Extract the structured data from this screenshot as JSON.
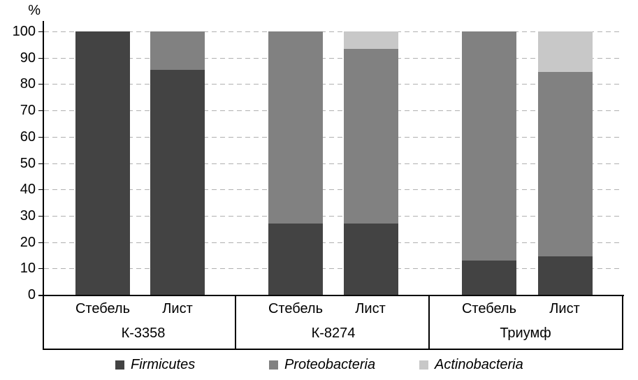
{
  "chart_data": {
    "type": "bar",
    "subtype": "stacked-vertical",
    "title": "",
    "ylabel": "%",
    "xlabel": "",
    "ylim": [
      0,
      100
    ],
    "yticks": [
      0,
      10,
      20,
      30,
      40,
      50,
      60,
      70,
      80,
      90,
      100
    ],
    "grid": "dashed-horizontal",
    "legend_position": "bottom",
    "groups": [
      {
        "label": "К-3358",
        "categories": [
          "Стебель",
          "Лист"
        ]
      },
      {
        "label": "К-8274",
        "categories": [
          "Стебель",
          "Лист"
        ]
      },
      {
        "label": "Триумф",
        "categories": [
          "Стебель",
          "Лист"
        ]
      }
    ],
    "categories": [
      "Стебель",
      "Лист",
      "Стебель",
      "Лист",
      "Стебель",
      "Лист"
    ],
    "series": [
      {
        "name": "Firmicutes",
        "color": "#434343",
        "values": [
          100,
          85.5,
          27,
          27,
          13,
          14.5
        ]
      },
      {
        "name": "Proteobacteria",
        "color": "#818181",
        "values": [
          0,
          14.5,
          73,
          66.5,
          87,
          70
        ]
      },
      {
        "name": "Actinobacteria",
        "color": "#c8c8c8",
        "values": [
          0,
          0,
          0,
          6.5,
          0,
          15.5
        ]
      }
    ],
    "colors": {
      "axis": "#000000",
      "gridline": "#b0b0b0",
      "background": "#ffffff"
    }
  }
}
